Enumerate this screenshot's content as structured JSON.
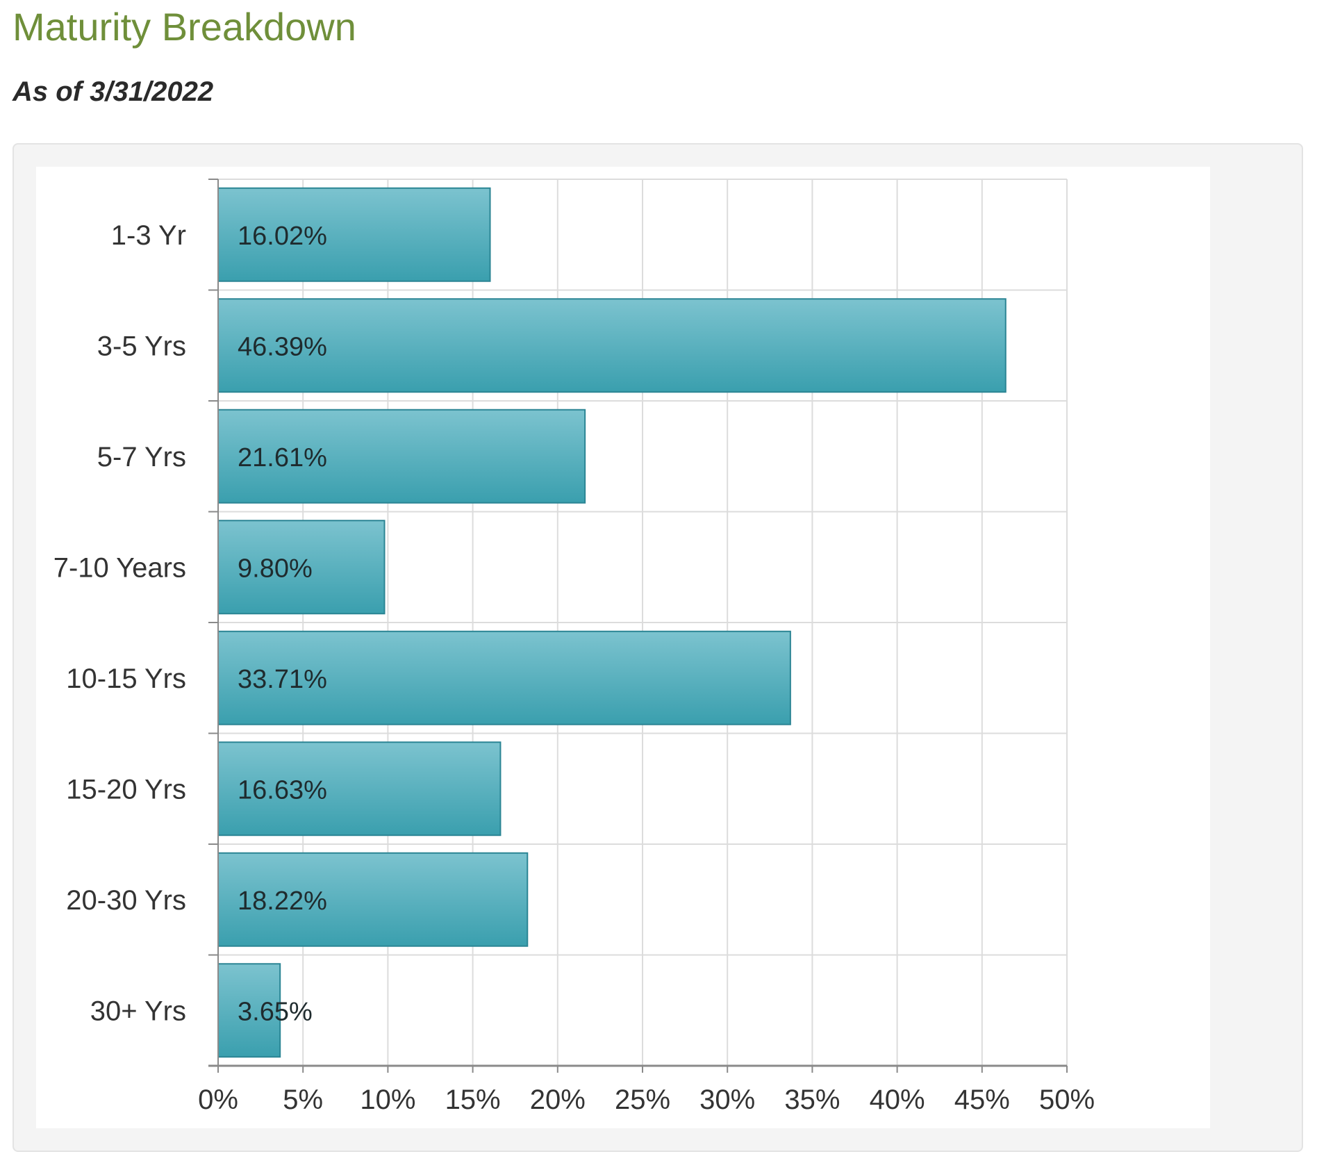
{
  "header": {
    "title": "Maturity Breakdown",
    "as_of": "As of 3/31/2022"
  },
  "colors": {
    "title": "#6f8f3a",
    "bar_fill_top": "#7cc3cf",
    "bar_fill_bottom": "#3a9fae",
    "bar_stroke": "#2b8594",
    "grid": "#dcdcdc",
    "axis": "#8a8a8a"
  },
  "chart_data": {
    "type": "bar",
    "orientation": "horizontal",
    "categories": [
      "1-3 Yr",
      "3-5 Yrs",
      "5-7 Yrs",
      "7-10 Years",
      "10-15 Yrs",
      "15-20 Yrs",
      "20-30 Yrs",
      "30+ Yrs"
    ],
    "values": [
      16.02,
      46.39,
      21.61,
      9.8,
      33.71,
      16.63,
      18.22,
      3.65
    ],
    "value_labels": [
      "16.02%",
      "46.39%",
      "21.61%",
      "9.80%",
      "33.71%",
      "16.63%",
      "18.22%",
      "3.65%"
    ],
    "xlim": [
      0,
      50
    ],
    "x_ticks": [
      0,
      5,
      10,
      15,
      20,
      25,
      30,
      35,
      40,
      45,
      50
    ],
    "x_tick_labels": [
      "0%",
      "5%",
      "10%",
      "15%",
      "20%",
      "25%",
      "30%",
      "35%",
      "40%",
      "45%",
      "50%"
    ],
    "title": "",
    "xlabel": "",
    "ylabel": "",
    "grid": true,
    "legend": "none"
  }
}
